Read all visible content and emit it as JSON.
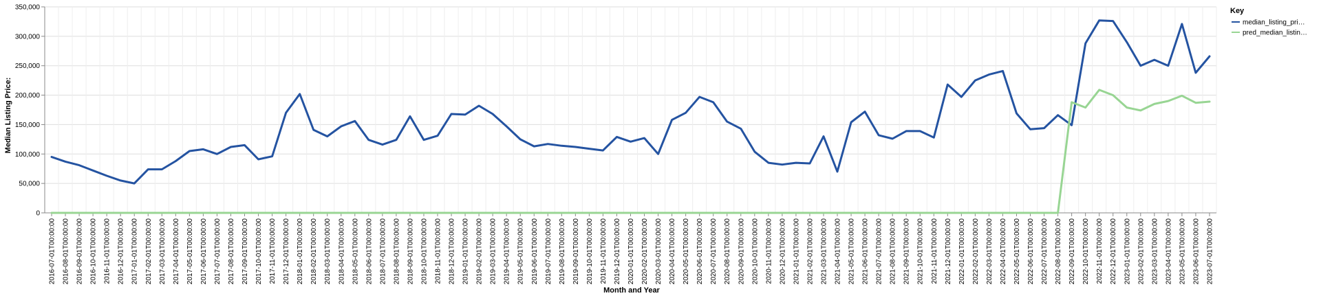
{
  "chart_data": {
    "type": "line",
    "xlabel": "Month and Year",
    "ylabel": "Median Listing Price:",
    "ylim": [
      0,
      350000
    ],
    "y_ticks": [
      "0",
      "50,000",
      "100,000",
      "150,000",
      "200,000",
      "250,000",
      "300,000",
      "350,000"
    ],
    "y_tick_values": [
      0,
      50000,
      100000,
      150000,
      200000,
      250000,
      300000,
      350000
    ],
    "grid": true,
    "legend": {
      "title": "Key",
      "placement": "top-right",
      "entries": [
        "median_listing_pri…",
        "pred_median_listin…"
      ]
    },
    "x": [
      "2016-07-01T00:00:00",
      "2016-08-01T00:00:00",
      "2016-09-01T00:00:00",
      "2016-10-01T00:00:00",
      "2016-11-01T00:00:00",
      "2016-12-01T00:00:00",
      "2017-01-01T00:00:00",
      "2017-02-01T00:00:00",
      "2017-03-01T00:00:00",
      "2017-04-01T00:00:00",
      "2017-05-01T00:00:00",
      "2017-06-01T00:00:00",
      "2017-07-01T00:00:00",
      "2017-08-01T00:00:00",
      "2017-09-01T00:00:00",
      "2017-10-01T00:00:00",
      "2017-11-01T00:00:00",
      "2017-12-01T00:00:00",
      "2018-01-01T00:00:00",
      "2018-02-01T00:00:00",
      "2018-03-01T00:00:00",
      "2018-04-01T00:00:00",
      "2018-05-01T00:00:00",
      "2018-06-01T00:00:00",
      "2018-07-01T00:00:00",
      "2018-08-01T00:00:00",
      "2018-09-01T00:00:00",
      "2018-10-01T00:00:00",
      "2018-11-01T00:00:00",
      "2018-12-01T00:00:00",
      "2019-01-01T00:00:00",
      "2019-02-01T00:00:00",
      "2019-03-01T00:00:00",
      "2019-04-01T00:00:00",
      "2019-05-01T00:00:00",
      "2019-06-01T00:00:00",
      "2019-07-01T00:00:00",
      "2019-08-01T00:00:00",
      "2019-09-01T00:00:00",
      "2019-10-01T00:00:00",
      "2019-11-01T00:00:00",
      "2019-12-01T00:00:00",
      "2020-01-01T00:00:00",
      "2020-02-01T00:00:00",
      "2020-03-01T00:00:00",
      "2020-04-01T00:00:00",
      "2020-05-01T00:00:00",
      "2020-06-01T00:00:00",
      "2020-07-01T00:00:00",
      "2020-08-01T00:00:00",
      "2020-09-01T00:00:00",
      "2020-10-01T00:00:00",
      "2020-11-01T00:00:00",
      "2020-12-01T00:00:00",
      "2021-01-01T00:00:00",
      "2021-02-01T00:00:00",
      "2021-03-01T00:00:00",
      "2021-04-01T00:00:00",
      "2021-05-01T00:00:00",
      "2021-06-01T00:00:00",
      "2021-07-01T00:00:00",
      "2021-08-01T00:00:00",
      "2021-09-01T00:00:00",
      "2021-10-01T00:00:00",
      "2021-11-01T00:00:00",
      "2021-12-01T00:00:00",
      "2022-01-01T00:00:00",
      "2022-02-01T00:00:00",
      "2022-03-01T00:00:00",
      "2022-04-01T00:00:00",
      "2022-05-01T00:00:00",
      "2022-06-01T00:00:00",
      "2022-07-01T00:00:00",
      "2022-08-01T00:00:00",
      "2022-09-01T00:00:00",
      "2022-10-01T00:00:00",
      "2022-11-01T00:00:00",
      "2022-12-01T00:00:00",
      "2023-01-01T00:00:00",
      "2023-02-01T00:00:00",
      "2023-03-01T00:00:00",
      "2023-04-01T00:00:00",
      "2023-05-01T00:00:00",
      "2023-06-01T00:00:00",
      "2023-07-01T00:00:00"
    ],
    "series": [
      {
        "name": "median_listing_pri…",
        "color": "#2453a1",
        "values": [
          95000,
          87000,
          81000,
          72000,
          63000,
          55000,
          50000,
          74000,
          74000,
          88000,
          105000,
          108000,
          100000,
          112000,
          115000,
          91000,
          96000,
          170000,
          202000,
          141000,
          130000,
          147000,
          156000,
          124000,
          116000,
          124000,
          164000,
          124000,
          131000,
          168000,
          167000,
          182000,
          168000,
          147000,
          125000,
          113000,
          117000,
          114000,
          112000,
          109000,
          106000,
          129000,
          121000,
          127000,
          100000,
          158000,
          170000,
          197000,
          188000,
          155000,
          143000,
          104000,
          85000,
          82000,
          85000,
          84000,
          130000,
          70000,
          154000,
          172000,
          132000,
          126000,
          139000,
          139000,
          128000,
          218000,
          197000,
          225000,
          235000,
          241000,
          169000,
          142000,
          144000,
          166000,
          149000,
          288000,
          327000,
          326000,
          290000,
          250000,
          260000,
          250000,
          321000,
          238000,
          266000
        ]
      },
      {
        "name": "pred_median_listin…",
        "color": "#98d593",
        "values": [
          0,
          0,
          0,
          0,
          0,
          0,
          0,
          0,
          0,
          0,
          0,
          0,
          0,
          0,
          0,
          0,
          0,
          0,
          0,
          0,
          0,
          0,
          0,
          0,
          0,
          0,
          0,
          0,
          0,
          0,
          0,
          0,
          0,
          0,
          0,
          0,
          0,
          0,
          0,
          0,
          0,
          0,
          0,
          0,
          0,
          0,
          0,
          0,
          0,
          0,
          0,
          0,
          0,
          0,
          0,
          0,
          0,
          0,
          0,
          0,
          0,
          0,
          0,
          0,
          0,
          0,
          0,
          0,
          0,
          0,
          0,
          0,
          0,
          0,
          188000,
          179000,
          209000,
          200000,
          179000,
          174000,
          185000,
          190000,
          199000,
          187000,
          189000
        ]
      }
    ]
  }
}
